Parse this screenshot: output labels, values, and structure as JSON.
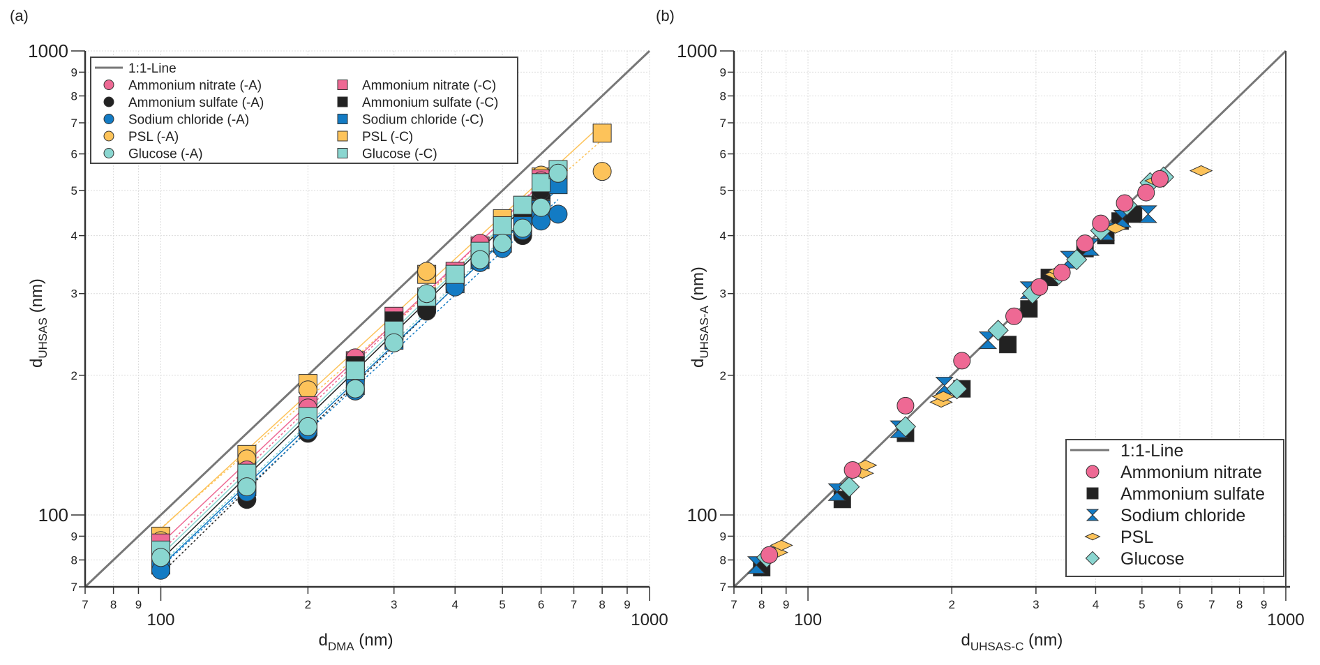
{
  "colors": {
    "ammonium_nitrate": "#ee6994",
    "ammonium_sulfate": "#222222",
    "sodium_chloride": "#137bc4",
    "psl": "#fdc35a",
    "glucose": "#8ad6d0",
    "one_to_one": "#777777"
  },
  "chart_data": [
    {
      "panel_label": "(a)",
      "type": "scatter",
      "xscale": "log",
      "yscale": "log",
      "xlim": [
        70,
        1000
      ],
      "ylim": [
        70,
        1000
      ],
      "xlabel_main": "d",
      "xlabel_sub": "DMA",
      "xlabel_unit": " (nm)",
      "ylabel_main": "d",
      "ylabel_sub": "UHSAS",
      "ylabel_unit": " (nm)",
      "x_major_ticks": [
        {
          "v": 100,
          "label": "100"
        },
        {
          "v": 1000,
          "label": "1000"
        }
      ],
      "x_minor_ticks": [
        {
          "v": 70,
          "label": "7"
        },
        {
          "v": 80,
          "label": "8"
        },
        {
          "v": 90,
          "label": "9"
        },
        {
          "v": 200,
          "label": "2"
        },
        {
          "v": 300,
          "label": "3"
        },
        {
          "v": 400,
          "label": "4"
        },
        {
          "v": 500,
          "label": "5"
        },
        {
          "v": 600,
          "label": "6"
        },
        {
          "v": 700,
          "label": "7"
        },
        {
          "v": 800,
          "label": "8"
        },
        {
          "v": 900,
          "label": "9"
        }
      ],
      "y_major_ticks": [
        {
          "v": 100,
          "label": "100"
        },
        {
          "v": 1000,
          "label": "1000"
        }
      ],
      "y_minor_ticks": [
        {
          "v": 70,
          "label": "7"
        },
        {
          "v": 80,
          "label": "8"
        },
        {
          "v": 90,
          "label": "9"
        },
        {
          "v": 200,
          "label": "2"
        },
        {
          "v": 300,
          "label": "3"
        },
        {
          "v": 400,
          "label": "4"
        },
        {
          "v": 500,
          "label": "5"
        },
        {
          "v": 600,
          "label": "6"
        },
        {
          "v": 700,
          "label": "7"
        },
        {
          "v": 800,
          "label": "8"
        },
        {
          "v": 900,
          "label": "9"
        }
      ],
      "grid": true,
      "legend_position": "top-left",
      "legend": [
        {
          "label": "1:1-Line",
          "marker": "line",
          "color_key": "one_to_one"
        },
        {
          "label": "Ammonium nitrate (-A)",
          "marker": "circle",
          "color_key": "ammonium_nitrate"
        },
        {
          "label": "Ammonium sulfate (-A)",
          "marker": "circle",
          "color_key": "ammonium_sulfate"
        },
        {
          "label": "Sodium chloride (-A)",
          "marker": "circle",
          "color_key": "sodium_chloride"
        },
        {
          "label": "PSL (-A)",
          "marker": "circle",
          "color_key": "psl"
        },
        {
          "label": "Glucose (-A)",
          "marker": "circle",
          "color_key": "glucose"
        },
        {
          "label": "Ammonium nitrate (-C)",
          "marker": "square",
          "color_key": "ammonium_nitrate"
        },
        {
          "label": "Ammonium sulfate (-C)",
          "marker": "square",
          "color_key": "ammonium_sulfate"
        },
        {
          "label": "Sodium chloride (-C)",
          "marker": "square",
          "color_key": "sodium_chloride"
        },
        {
          "label": "PSL (-C)",
          "marker": "square",
          "color_key": "psl"
        },
        {
          "label": "Glucose (-C)",
          "marker": "square",
          "color_key": "glucose"
        }
      ],
      "reference_line": {
        "name": "1:1-Line",
        "x": [
          70,
          1000
        ],
        "y": [
          70,
          1000
        ]
      },
      "series": [
        {
          "name": "PSL (-C)",
          "marker": "square",
          "color_key": "psl",
          "fit": "solid",
          "fit_range": [
            100,
            800
          ],
          "x": [
            100,
            150,
            200,
            350,
            500,
            600,
            800
          ],
          "y": [
            90,
            135,
            192,
            330,
            435,
            535,
            665
          ]
        },
        {
          "name": "PSL (-A)",
          "marker": "circle",
          "color_key": "psl",
          "fit": "dashed",
          "fit_range": [
            100,
            800
          ],
          "x": [
            100,
            150,
            200,
            350,
            600,
            800
          ],
          "y": [
            88,
            132,
            186,
            335,
            540,
            550
          ]
        },
        {
          "name": "Ammonium nitrate (-C)",
          "marker": "square",
          "color_key": "ammonium_nitrate",
          "fit": "solid",
          "fit_range": [
            100,
            600
          ],
          "x": [
            100,
            200,
            250,
            300,
            400,
            450,
            600
          ],
          "y": [
            87,
            172,
            215,
            268,
            335,
            380,
            530
          ]
        },
        {
          "name": "Ammonium nitrate (-A)",
          "marker": "circle",
          "color_key": "ammonium_nitrate",
          "fit": "dashed",
          "fit_range": [
            100,
            600
          ],
          "x": [
            100,
            150,
            200,
            250,
            300,
            400,
            450,
            600
          ],
          "y": [
            83,
            125,
            170,
            218,
            262,
            330,
            385,
            525
          ]
        },
        {
          "name": "Ammonium sulfate (-C)",
          "marker": "square",
          "color_key": "ammonium_sulfate",
          "fit": "solid",
          "fit_range": [
            100,
            650
          ],
          "x": [
            100,
            150,
            200,
            250,
            300,
            350,
            400,
            550,
            600
          ],
          "y": [
            80,
            118,
            160,
            210,
            262,
            290,
            320,
            450,
            500
          ]
        },
        {
          "name": "Ammonium sulfate (-A)",
          "marker": "circle",
          "color_key": "ammonium_sulfate",
          "fit": "dashed",
          "fit_range": [
            100,
            600
          ],
          "x": [
            100,
            150,
            200,
            250,
            300,
            350,
            450,
            550,
            600
          ],
          "y": [
            77,
            108,
            150,
            195,
            235,
            275,
            350,
            400,
            500
          ]
        },
        {
          "name": "Sodium chloride (-C)",
          "marker": "square",
          "color_key": "sodium_chloride",
          "fit": "solid",
          "fit_range": [
            100,
            650
          ],
          "x": [
            100,
            150,
            200,
            250,
            300,
            400,
            450,
            500,
            550,
            600,
            650
          ],
          "y": [
            78,
            115,
            155,
            190,
            238,
            315,
            355,
            385,
            420,
            455,
            515
          ]
        },
        {
          "name": "Sodium chloride (-A)",
          "marker": "circle",
          "color_key": "sodium_chloride",
          "fit": "dashed",
          "fit_range": [
            100,
            650
          ],
          "x": [
            100,
            150,
            200,
            250,
            300,
            400,
            450,
            500,
            550,
            600,
            650
          ],
          "y": [
            76,
            112,
            152,
            185,
            235,
            310,
            350,
            375,
            410,
            430,
            445
          ]
        },
        {
          "name": "Glucose (-C)",
          "marker": "square",
          "color_key": "glucose",
          "fit": "solid",
          "fit_range": [
            100,
            650
          ],
          "x": [
            100,
            150,
            200,
            250,
            300,
            350,
            400,
            450,
            500,
            550,
            600,
            650
          ],
          "y": [
            84,
            123,
            163,
            205,
            250,
            295,
            330,
            370,
            420,
            465,
            520,
            555
          ]
        },
        {
          "name": "Glucose (-A)",
          "marker": "circle",
          "color_key": "glucose",
          "fit": "dashed",
          "fit_range": [
            100,
            650
          ],
          "x": [
            100,
            150,
            200,
            250,
            300,
            350,
            450,
            500,
            550,
            600,
            650
          ],
          "y": [
            81,
            115,
            155,
            187,
            235,
            300,
            355,
            385,
            415,
            460,
            545
          ]
        }
      ]
    },
    {
      "panel_label": "(b)",
      "type": "scatter",
      "xscale": "log",
      "yscale": "log",
      "xlim": [
        70,
        1000
      ],
      "ylim": [
        70,
        1000
      ],
      "xlabel_main": "d",
      "xlabel_sub": "UHSAS-C",
      "xlabel_unit": " (nm)",
      "ylabel_main": "d",
      "ylabel_sub": "UHSAS-A",
      "ylabel_unit": " (nm)",
      "x_major_ticks": [
        {
          "v": 100,
          "label": "100"
        },
        {
          "v": 1000,
          "label": "1000"
        }
      ],
      "x_minor_ticks": [
        {
          "v": 70,
          "label": "7"
        },
        {
          "v": 80,
          "label": "8"
        },
        {
          "v": 90,
          "label": "9"
        },
        {
          "v": 200,
          "label": "2"
        },
        {
          "v": 300,
          "label": "3"
        },
        {
          "v": 400,
          "label": "4"
        },
        {
          "v": 500,
          "label": "5"
        },
        {
          "v": 600,
          "label": "6"
        },
        {
          "v": 700,
          "label": "7"
        },
        {
          "v": 800,
          "label": "8"
        },
        {
          "v": 900,
          "label": "9"
        }
      ],
      "y_major_ticks": [
        {
          "v": 100,
          "label": "100"
        },
        {
          "v": 1000,
          "label": "1000"
        }
      ],
      "y_minor_ticks": [
        {
          "v": 70,
          "label": "7"
        },
        {
          "v": 80,
          "label": "8"
        },
        {
          "v": 90,
          "label": "9"
        },
        {
          "v": 200,
          "label": "2"
        },
        {
          "v": 300,
          "label": "3"
        },
        {
          "v": 400,
          "label": "4"
        },
        {
          "v": 500,
          "label": "5"
        },
        {
          "v": 600,
          "label": "6"
        },
        {
          "v": 700,
          "label": "7"
        },
        {
          "v": 800,
          "label": "8"
        },
        {
          "v": 900,
          "label": "9"
        }
      ],
      "grid": true,
      "legend_position": "bottom-right",
      "legend": [
        {
          "label": "1:1-Line",
          "marker": "line",
          "color_key": "one_to_one"
        },
        {
          "label": "Ammonium nitrate",
          "marker": "circle",
          "color_key": "ammonium_nitrate"
        },
        {
          "label": "Ammonium sulfate",
          "marker": "square",
          "color_key": "ammonium_sulfate"
        },
        {
          "label": "Sodium chloride",
          "marker": "hourglass",
          "color_key": "sodium_chloride"
        },
        {
          "label": "PSL",
          "marker": "flat-diamond",
          "color_key": "psl"
        },
        {
          "label": "Glucose",
          "marker": "diamond",
          "color_key": "glucose"
        }
      ],
      "reference_line": {
        "name": "1:1-Line",
        "x": [
          70,
          1000
        ],
        "y": [
          70,
          1000
        ]
      },
      "series": [
        {
          "name": "Ammonium sulfate",
          "marker": "square",
          "color_key": "ammonium_sulfate",
          "x": [
            80,
            118,
            160,
            210,
            262,
            290,
            320,
            380,
            420,
            450,
            480
          ],
          "y": [
            77,
            108,
            150,
            187,
            233,
            278,
            325,
            375,
            400,
            430,
            445
          ]
        },
        {
          "name": "Sodium chloride",
          "marker": "hourglass",
          "color_key": "sodium_chloride",
          "x": [
            78,
            115,
            155,
            193,
            238,
            290,
            352,
            390,
            420,
            455,
            515
          ],
          "y": [
            78,
            112,
            153,
            190,
            238,
            305,
            355,
            378,
            408,
            435,
            445
          ]
        },
        {
          "name": "Glucose",
          "marker": "diamond",
          "color_key": "glucose",
          "x": [
            82,
            122,
            160,
            205,
            250,
            295,
            335,
            365,
            410,
            465,
            520,
            555
          ],
          "y": [
            81,
            115,
            155,
            187,
            250,
            300,
            330,
            355,
            410,
            465,
            520,
            535
          ]
        },
        {
          "name": "PSL",
          "marker": "flat-diamond",
          "color_key": "psl",
          "x": [
            86,
            88,
            130,
            132,
            190,
            192,
            330,
            335,
            440,
            535,
            665
          ],
          "y": [
            83,
            86,
            123,
            128,
            175,
            180,
            330,
            335,
            415,
            525,
            552
          ]
        },
        {
          "name": "Ammonium nitrate",
          "marker": "circle",
          "color_key": "ammonium_nitrate",
          "x": [
            83,
            124,
            160,
            210,
            270,
            305,
            340,
            380,
            410,
            460,
            510,
            545
          ],
          "y": [
            82,
            125,
            172,
            215,
            268,
            310,
            333,
            385,
            425,
            470,
            495,
            530
          ]
        }
      ]
    }
  ]
}
